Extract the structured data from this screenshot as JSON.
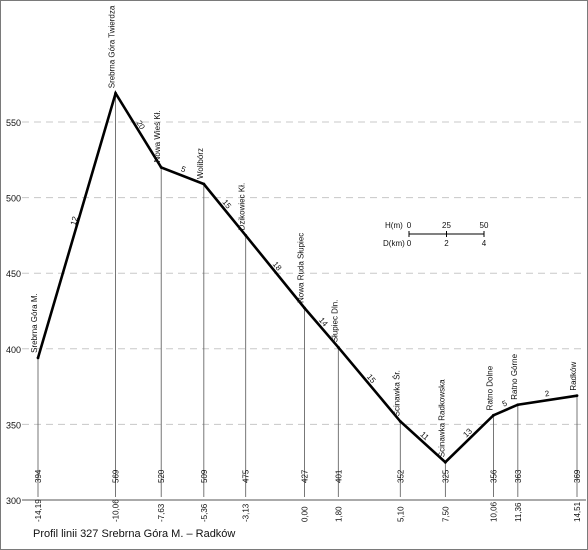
{
  "caption": "Profil linii 327 Srebrna Góra M. – Radków",
  "chart_data": {
    "type": "line",
    "title": "Profil linii 327 Srebrna Góra M. – Radków",
    "y_ticks": [
      300,
      350,
      400,
      450,
      500,
      550
    ],
    "ylim": [
      300,
      575
    ],
    "grid": "dashed horizontal at 350, 450, 550",
    "stations": [
      {
        "name": "Srebrna Góra M.",
        "km": "-14,19",
        "height": "394",
        "x": -14.19,
        "h": 394
      },
      {
        "name": "Srebrna Góra Twierdza",
        "km": "-10,06",
        "height": "569",
        "x": -10.06,
        "h": 569
      },
      {
        "name": "Nowa Wieś Kł.",
        "km": "-7,63",
        "height": "520",
        "x": -7.63,
        "h": 520
      },
      {
        "name": "Wolibórz",
        "km": "-5,36",
        "height": "509",
        "x": -5.36,
        "h": 509
      },
      {
        "name": "Dzikowiec Kł.",
        "km": "-3,13",
        "height": "475",
        "x": -3.13,
        "h": 475
      },
      {
        "name": "Nowa Ruda Słupiec",
        "km": "0,00",
        "height": "427",
        "x": 0.0,
        "h": 427
      },
      {
        "name": "Słupiec Dln.",
        "km": "1,80",
        "height": "401",
        "x": 1.8,
        "h": 401
      },
      {
        "name": "Ścinawka Śr.",
        "km": "5,10",
        "height": "352",
        "x": 5.1,
        "h": 352
      },
      {
        "name": "Ścinawka Radkowska",
        "km": "7,50",
        "height": "325",
        "x": 7.5,
        "h": 325
      },
      {
        "name": "Ratno Dolne",
        "km": "10,06",
        "height": "356",
        "x": 10.06,
        "h": 356
      },
      {
        "name": "Ratno Górne",
        "km": "11,36",
        "height": "363",
        "x": 11.36,
        "h": 363
      },
      {
        "name": "Radków",
        "km": "14,51",
        "height": "369",
        "x": 14.51,
        "h": 369
      }
    ],
    "gradients": [
      "12",
      "20",
      "5",
      "15",
      "18",
      "14",
      "15",
      "11",
      "13",
      "5",
      "2"
    ],
    "scale": {
      "h_label": "H(m)",
      "h_ticks": [
        "0",
        "25",
        "50"
      ],
      "d_label": "D(km)",
      "d_ticks": [
        "0",
        "2",
        "4"
      ]
    }
  }
}
